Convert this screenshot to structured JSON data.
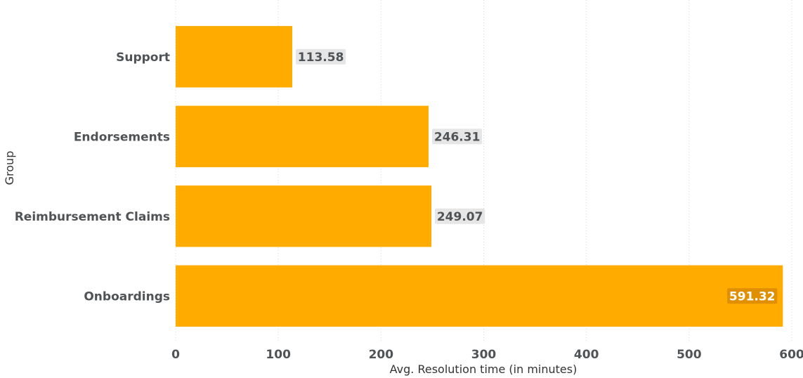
{
  "chart_data": {
    "type": "bar",
    "orientation": "horizontal",
    "categories": [
      "Support",
      "Endorsements",
      "Reimbursement Claims",
      "Onboardings"
    ],
    "values": [
      113.58,
      246.31,
      249.07,
      591.32
    ],
    "data_labels": [
      "113.58",
      "246.31",
      "249.07",
      "591.32"
    ],
    "xlabel": "Avg. Resolution time (in minutes)",
    "ylabel": "Group",
    "xlim": [
      0,
      600
    ],
    "xticks": [
      0,
      100,
      200,
      300,
      400,
      500,
      600
    ],
    "xtick_labels": [
      "0",
      "100",
      "200",
      "300",
      "400",
      "500",
      "600"
    ],
    "grid": true,
    "legend": "none",
    "colors": {
      "bar": "#FFAB00",
      "label_bg_outside": "#E6E6E6",
      "label_text_outside": "#505356",
      "label_bg_inside": "#E08F00",
      "label_text_inside": "#FFFFFF",
      "text": "#505356"
    }
  }
}
